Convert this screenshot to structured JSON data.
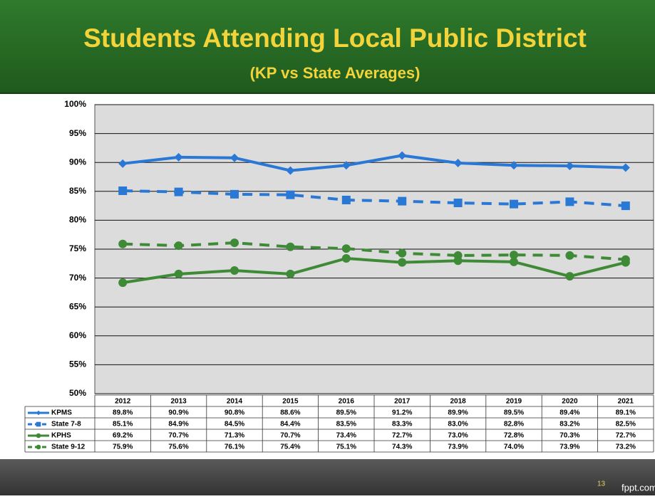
{
  "chart_data": {
    "type": "line",
    "title": "Students Attending Local Public District",
    "subtitle": "(KP vs State Averages)",
    "categories": [
      "2012",
      "2013",
      "2014",
      "2015",
      "2016",
      "2017",
      "2018",
      "2019",
      "2020",
      "2021"
    ],
    "series": [
      {
        "name": "KPMS",
        "color": "#2a78d6",
        "dash": false,
        "marker": "diamond",
        "values": [
          89.8,
          90.9,
          90.8,
          88.6,
          89.5,
          91.2,
          89.9,
          89.5,
          89.4,
          89.1
        ],
        "value_labels": [
          "89.8%",
          "90.9%",
          "90.8%",
          "88.6%",
          "89.5%",
          "91.2%",
          "89.9%",
          "89.5%",
          "89.4%",
          "89.1%"
        ]
      },
      {
        "name": "State 7-8",
        "color": "#2a78d6",
        "dash": true,
        "marker": "square",
        "values": [
          85.1,
          84.9,
          84.5,
          84.4,
          83.5,
          83.3,
          83.0,
          82.8,
          83.2,
          82.5
        ],
        "value_labels": [
          "85.1%",
          "84.9%",
          "84.5%",
          "84.4%",
          "83.5%",
          "83.3%",
          "83.0%",
          "82.8%",
          "83.2%",
          "82.5%"
        ]
      },
      {
        "name": "KPHS",
        "color": "#3e8a36",
        "dash": false,
        "marker": "circle",
        "values": [
          69.2,
          70.7,
          71.3,
          70.7,
          73.4,
          72.7,
          73.0,
          72.8,
          70.3,
          72.7
        ],
        "value_labels": [
          "69.2%",
          "70.7%",
          "71.3%",
          "70.7%",
          "73.4%",
          "72.7%",
          "73.0%",
          "72.8%",
          "70.3%",
          "72.7%"
        ]
      },
      {
        "name": "State 9-12",
        "color": "#3e8a36",
        "dash": true,
        "marker": "circle",
        "values": [
          75.9,
          75.6,
          76.1,
          75.4,
          75.1,
          74.3,
          73.9,
          74.0,
          73.9,
          73.2
        ],
        "value_labels": [
          "75.9%",
          "75.6%",
          "76.1%",
          "75.4%",
          "75.1%",
          "74.3%",
          "73.9%",
          "74.0%",
          "73.9%",
          "73.2%"
        ]
      }
    ],
    "ylim": [
      50,
      100
    ],
    "yticks": [
      {
        "value": 50,
        "label": "50%"
      },
      {
        "value": 55,
        "label": "55%"
      },
      {
        "value": 60,
        "label": "60%"
      },
      {
        "value": 65,
        "label": "65%"
      },
      {
        "value": 70,
        "label": "70%"
      },
      {
        "value": 75,
        "label": "75%"
      },
      {
        "value": 80,
        "label": "80%"
      },
      {
        "value": 85,
        "label": "85%"
      },
      {
        "value": 90,
        "label": "90%"
      },
      {
        "value": 95,
        "label": "95%"
      },
      {
        "value": 100,
        "label": "100%"
      }
    ],
    "grid": true
  },
  "footer": {
    "page": "13",
    "site": "fppt.com"
  }
}
